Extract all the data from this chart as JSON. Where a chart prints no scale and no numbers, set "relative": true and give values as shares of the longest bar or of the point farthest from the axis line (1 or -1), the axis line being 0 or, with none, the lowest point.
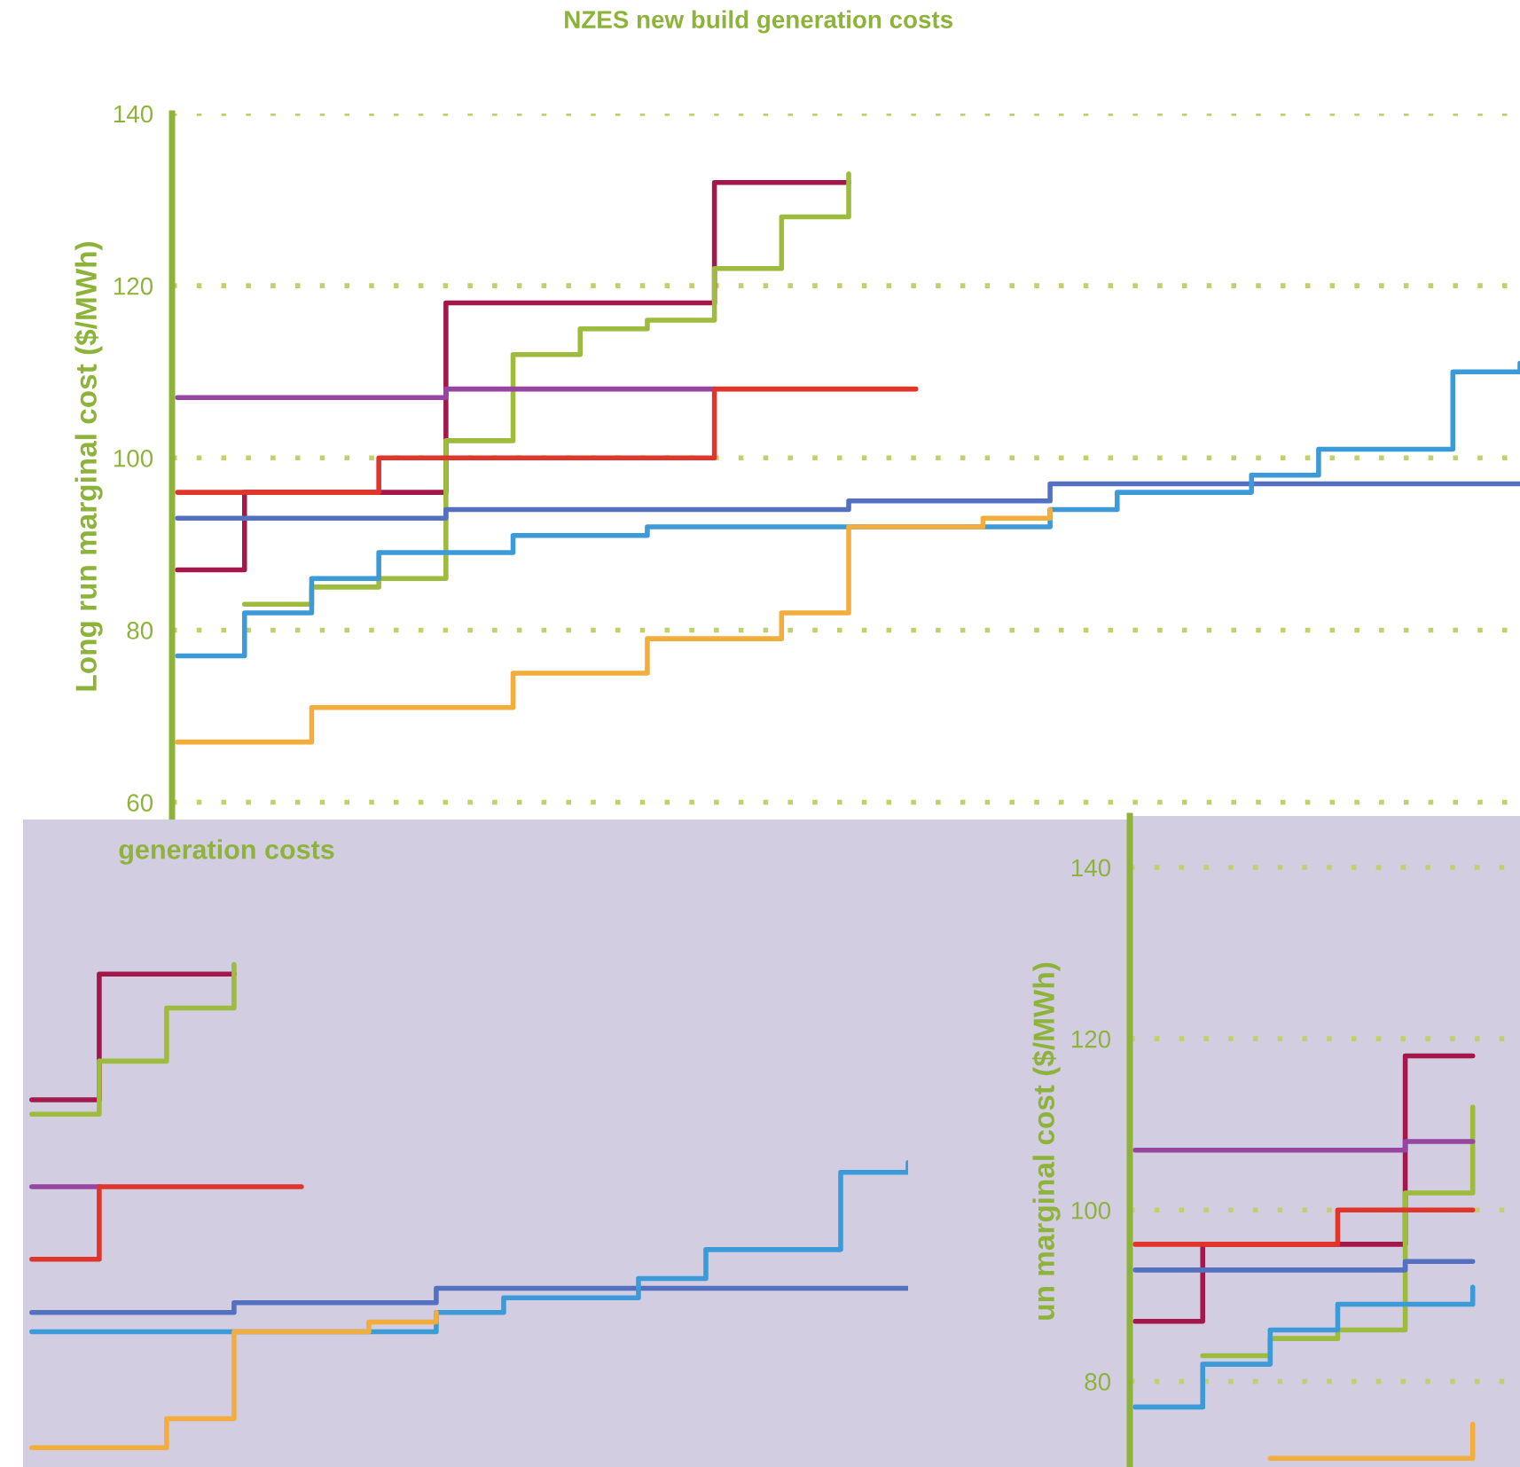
{
  "chart_data": [
    {
      "type": "step",
      "title": "NZES new build generation costs",
      "ylabel": "Long run marginal cost ($/MWh)",
      "ylim": [
        58,
        140
      ],
      "yticks": [
        60,
        80,
        100,
        120,
        140
      ],
      "grid": "y",
      "tick_labels": "y",
      "categories": [
        null,
        null,
        null,
        null,
        null,
        null,
        null,
        null,
        null,
        null,
        null,
        null,
        null,
        null,
        null,
        null,
        null,
        null,
        null,
        null,
        null
      ],
      "series": [
        {
          "color": "#a3174a",
          "values": [
            87,
            96,
            96,
            96,
            118,
            118,
            118,
            118,
            132,
            132,
            132,
            null,
            null,
            null,
            null,
            null,
            null,
            null,
            null,
            null,
            null
          ]
        },
        {
          "color": "#9dbb3d",
          "values": [
            null,
            83,
            85,
            86,
            102,
            112,
            115,
            116,
            122,
            128,
            133,
            null,
            null,
            null,
            null,
            null,
            null,
            null,
            null,
            null,
            null
          ]
        },
        {
          "color": "#9646a0",
          "values": [
            107,
            107,
            107,
            107,
            108,
            108,
            108,
            108,
            108,
            null,
            null,
            null,
            null,
            null,
            null,
            null,
            null,
            null,
            null,
            null,
            null
          ]
        },
        {
          "color": "#e0352b",
          "values": [
            96,
            96,
            96,
            100,
            100,
            100,
            100,
            100,
            108,
            108,
            108,
            108,
            null,
            null,
            null,
            null,
            null,
            null,
            null,
            null,
            null
          ]
        },
        {
          "color": "#5470c0",
          "values": [
            93,
            93,
            93,
            93,
            94,
            94,
            94,
            94,
            94,
            94,
            95,
            95,
            95,
            97,
            97,
            97,
            97,
            97,
            97,
            97,
            97
          ]
        },
        {
          "color": "#3d9ad8",
          "values": [
            77,
            82,
            86,
            89,
            89,
            91,
            91,
            92,
            92,
            92,
            92,
            92,
            92,
            94,
            96,
            96,
            98,
            101,
            101,
            110,
            111
          ]
        },
        {
          "color": "#f2ad3d",
          "values": [
            67,
            67,
            71,
            71,
            71,
            75,
            75,
            79,
            79,
            82,
            92,
            92,
            93,
            94,
            null,
            null,
            null,
            null,
            null,
            null,
            null
          ]
        }
      ]
    },
    {
      "type": "step",
      "title": "generation costs",
      "relative": true,
      "categories": [
        null,
        null,
        null,
        null,
        null,
        null,
        null,
        null,
        null,
        null,
        null,
        null,
        null,
        null
      ],
      "series": [
        {
          "color": "#a3174a",
          "values": [
            0.72,
            0.98,
            0.98,
            0.98,
            null,
            null,
            null,
            null,
            null,
            null,
            null,
            null,
            null,
            null
          ]
        },
        {
          "color": "#9dbb3d",
          "values": [
            0.69,
            0.8,
            0.91,
            1,
            null,
            null,
            null,
            null,
            null,
            null,
            null,
            null,
            null,
            null
          ]
        },
        {
          "color": "#9646a0",
          "values": [
            0.54,
            0.54,
            null,
            null,
            null,
            null,
            null,
            null,
            null,
            null,
            null,
            null,
            null,
            null
          ]
        },
        {
          "color": "#e0352b",
          "values": [
            0.39,
            0.54,
            0.54,
            0.54,
            0.54,
            null,
            null,
            null,
            null,
            null,
            null,
            null,
            null,
            null
          ]
        },
        {
          "color": "#5470c0",
          "values": [
            0.28,
            0.28,
            0.28,
            0.3,
            0.3,
            0.3,
            0.33,
            0.33,
            0.33,
            0.33,
            0.33,
            0.33,
            0.33,
            0.33
          ]
        },
        {
          "color": "#3d9ad8",
          "values": [
            0.24,
            0.24,
            0.24,
            0.24,
            0.24,
            0.24,
            0.28,
            0.31,
            0.31,
            0.35,
            0.41,
            0.41,
            0.57,
            0.59
          ]
        },
        {
          "color": "#f2ad3d",
          "values": [
            0,
            0,
            0.06,
            0.24,
            0.24,
            0.26,
            0.28,
            null,
            null,
            null,
            null,
            null,
            null,
            null
          ]
        }
      ]
    },
    {
      "type": "step",
      "ylabel": "un marginal cost ($/MWh)",
      "ylim": [
        70,
        146
      ],
      "yticks": [
        80,
        100,
        120,
        140
      ],
      "grid": "y",
      "tick_labels": "y",
      "categories": [
        null,
        null,
        null,
        null,
        null,
        null
      ],
      "series": [
        {
          "color": "#a3174a",
          "values": [
            87,
            96,
            96,
            96,
            118,
            118
          ]
        },
        {
          "color": "#9dbb3d",
          "values": [
            null,
            83,
            85,
            86,
            102,
            112
          ]
        },
        {
          "color": "#9646a0",
          "values": [
            107,
            107,
            107,
            107,
            108,
            108
          ]
        },
        {
          "color": "#e0352b",
          "values": [
            96,
            96,
            96,
            100,
            100,
            100
          ]
        },
        {
          "color": "#5470c0",
          "values": [
            93,
            93,
            93,
            93,
            94,
            94
          ]
        },
        {
          "color": "#3d9ad8",
          "values": [
            77,
            82,
            86,
            89,
            89,
            91
          ]
        },
        {
          "color": "#f2ad3d",
          "values": [
            null,
            null,
            71,
            71,
            71,
            75
          ]
        }
      ]
    }
  ]
}
